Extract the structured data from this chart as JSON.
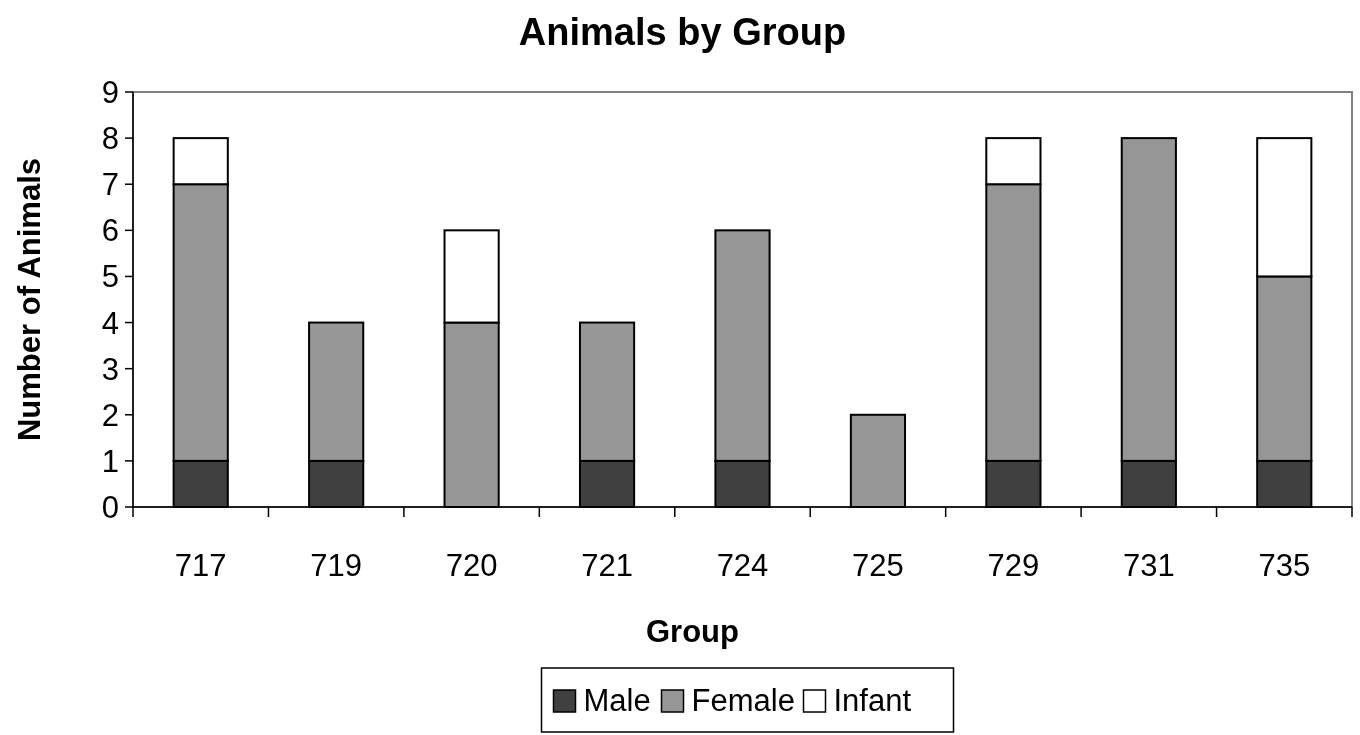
{
  "chart_data": {
    "type": "bar",
    "title": "Animals by Group",
    "xlabel": "Group",
    "ylabel": "Number of Animals",
    "categories": [
      "717",
      "719",
      "720",
      "721",
      "724",
      "725",
      "729",
      "731",
      "735"
    ],
    "series": [
      {
        "name": "Male",
        "color": "#404040",
        "values": [
          1,
          1,
          0,
          1,
          1,
          0,
          1,
          1,
          1
        ]
      },
      {
        "name": "Female",
        "color": "#969696",
        "values": [
          6,
          3,
          4,
          3,
          5,
          2,
          6,
          7,
          4
        ]
      },
      {
        "name": "Infant",
        "color": "#ffffff",
        "values": [
          1,
          0,
          2,
          0,
          0,
          0,
          1,
          0,
          3
        ]
      }
    ],
    "stacked": true,
    "ylim": [
      0,
      9
    ],
    "yticks": [
      0,
      1,
      2,
      3,
      4,
      5,
      6,
      7,
      8,
      9
    ],
    "grid": false,
    "legend": "bottom"
  }
}
